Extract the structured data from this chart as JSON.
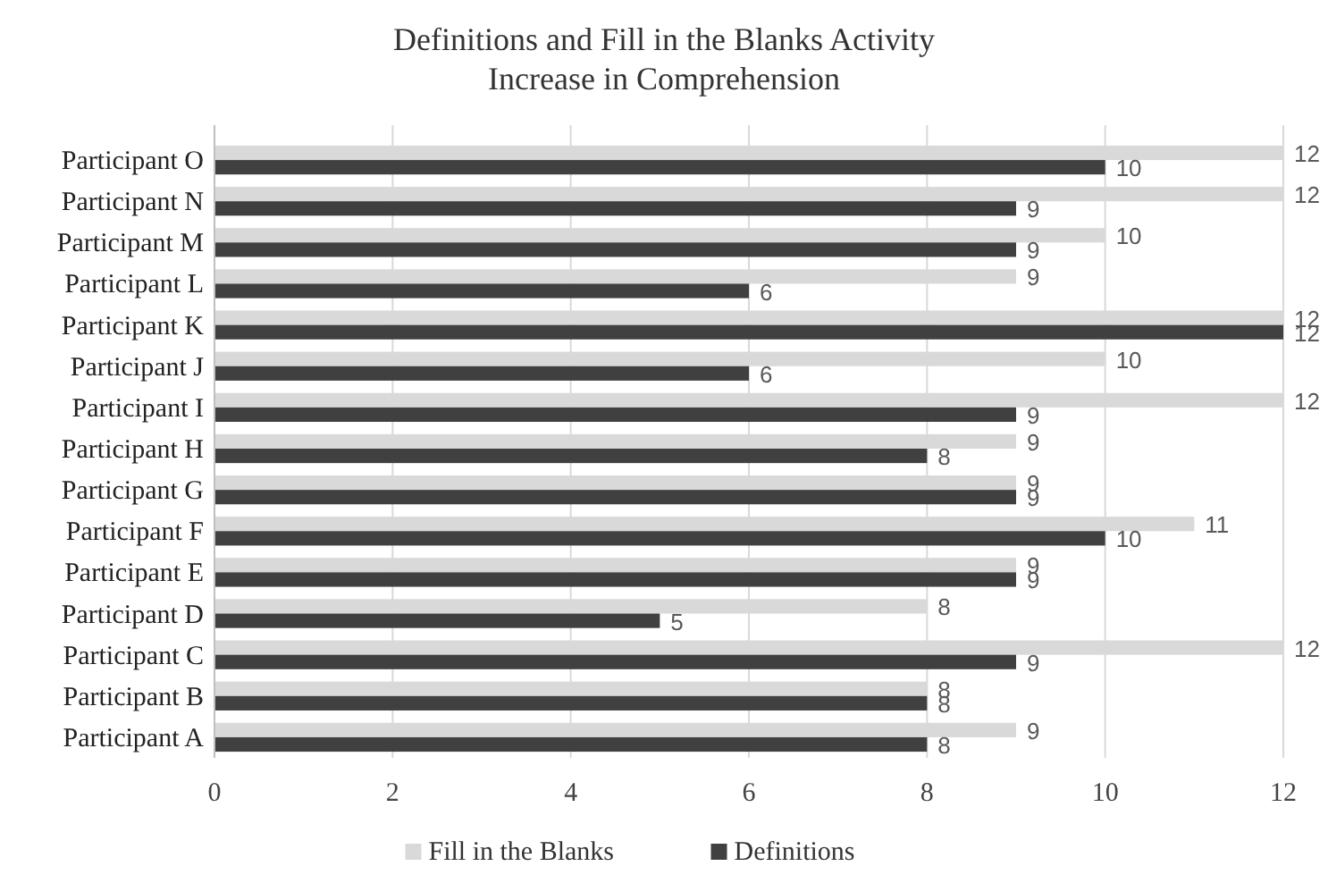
{
  "chart_data": {
    "type": "bar",
    "orientation": "horizontal",
    "title": "Definitions and Fill in the Blanks Activity\nIncrease in Comprehension",
    "categories": [
      "Participant O",
      "Participant N",
      "Participant M",
      "Participant L",
      "Participant K",
      "Participant J",
      "Participant I",
      "Participant H",
      "Participant G",
      "Participant F",
      "Participant E",
      "Participant D",
      "Participant C",
      "Participant B",
      "Participant A"
    ],
    "series": [
      {
        "name": "Fill in the Blanks",
        "color": "#d9d9d9",
        "values": [
          12,
          12,
          10,
          9,
          12,
          10,
          12,
          9,
          9,
          11,
          9,
          8,
          12,
          8,
          9
        ]
      },
      {
        "name": "Definitions",
        "color": "#404040",
        "values": [
          10,
          9,
          9,
          6,
          12,
          6,
          9,
          8,
          9,
          10,
          9,
          5,
          9,
          8,
          8
        ]
      }
    ],
    "xlim": [
      0,
      12
    ],
    "xticks": [
      0,
      2,
      4,
      6,
      8,
      10,
      12
    ],
    "grid": "x",
    "legend": "bottom",
    "data_labels": true
  }
}
